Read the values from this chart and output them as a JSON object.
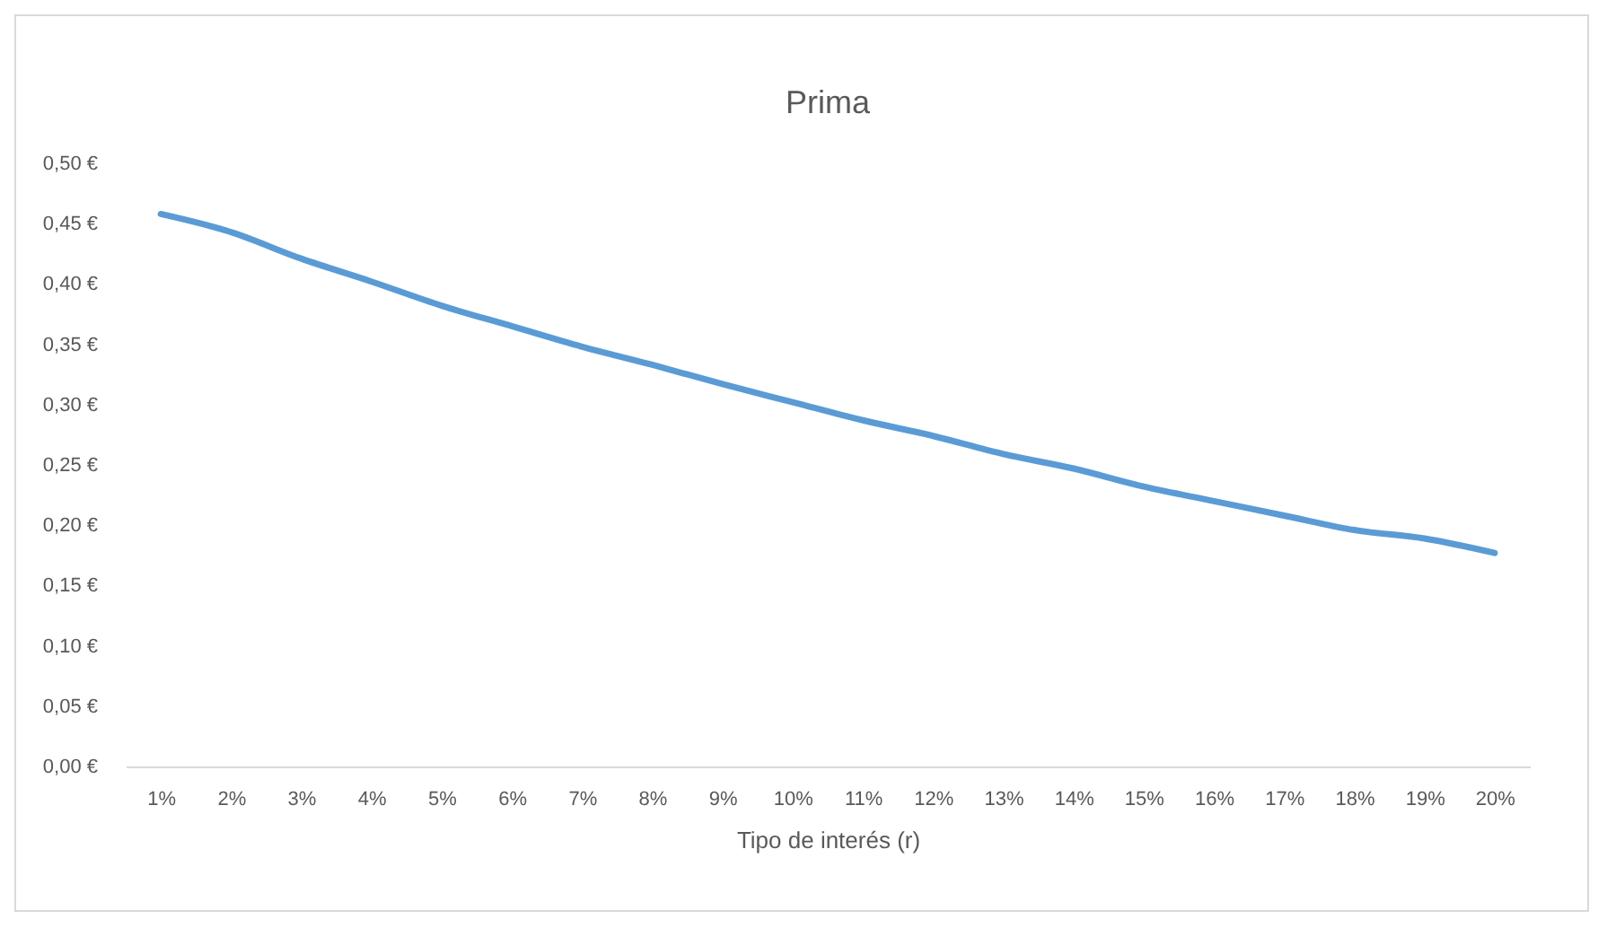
{
  "chart_data": {
    "type": "line",
    "title": "Prima",
    "xlabel": "Tipo de interés (r)",
    "categories": [
      "1%",
      "2%",
      "3%",
      "4%",
      "5%",
      "6%",
      "7%",
      "8%",
      "9%",
      "10%",
      "11%",
      "12%",
      "13%",
      "14%",
      "15%",
      "16%",
      "17%",
      "18%",
      "19%",
      "20%"
    ],
    "series": [
      {
        "color": "#5b9bd5",
        "values": [
          0.458,
          0.443,
          0.421,
          0.402,
          0.382,
          0.365,
          0.348,
          0.333,
          0.317,
          0.302,
          0.287,
          0.274,
          0.259,
          0.247,
          0.232,
          0.22,
          0.208,
          0.196,
          0.189,
          0.177
        ]
      }
    ],
    "ylim": [
      0,
      0.5
    ],
    "yticks": [
      {
        "value": 0,
        "label": "0,00 €"
      },
      {
        "value": 0.05,
        "label": "0,05 €"
      },
      {
        "value": 0.1,
        "label": "0,10 €"
      },
      {
        "value": 0.15,
        "label": "0,15 €"
      },
      {
        "value": 0.2,
        "label": "0,20 €"
      },
      {
        "value": 0.25,
        "label": "0,25 €"
      },
      {
        "value": 0.3,
        "label": "0,30 €"
      },
      {
        "value": 0.35,
        "label": "0,35 €"
      },
      {
        "value": 0.4,
        "label": "0,40 €"
      },
      {
        "value": 0.45,
        "label": "0,45 €"
      },
      {
        "value": 0.5,
        "label": "0,50 €"
      }
    ],
    "grid": false,
    "marker": "none",
    "line_style": "solid"
  }
}
